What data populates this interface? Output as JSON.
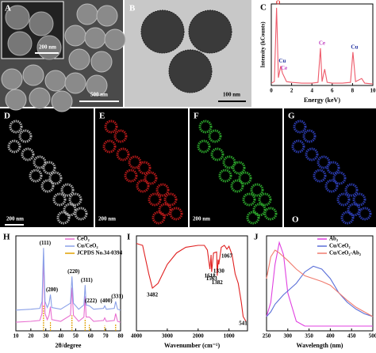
{
  "images": [
    {
      "label": "A",
      "scale_bars": [
        "200 nm",
        "500 nm"
      ]
    },
    {
      "label": "B",
      "scale_bars": [
        "100 nm"
      ]
    },
    {
      "label": "D",
      "scale_bars": [
        "200 nm"
      ]
    },
    {
      "label": "E",
      "scale_bars": [
        "200 nm"
      ]
    },
    {
      "label": "F",
      "scale_bars": [
        "200 nm"
      ]
    },
    {
      "label": "G",
      "scale_bars": [
        "O"
      ]
    }
  ],
  "chart_data": [
    {
      "type": "line",
      "label": "C",
      "x_label": "Energy (keV)",
      "y_label": "Intensity (kCounts)",
      "xlim": [
        0,
        10
      ],
      "ylim": [
        0,
        10.5
      ],
      "xticks": [
        0,
        2,
        4,
        6,
        8,
        10
      ],
      "x": [
        0,
        0.3,
        0.52,
        0.7,
        0.93,
        1.1,
        1.5,
        2,
        3,
        4,
        4.6,
        4.84,
        5,
        5.26,
        5.5,
        6,
        7,
        7.8,
        8.04,
        8.3,
        8.9,
        9.2,
        10
      ],
      "series": [
        {
          "color": "#ee5a6a",
          "values": [
            0.3,
            0.5,
            10,
            1,
            2.5,
            1.6,
            0.5,
            0.4,
            0.3,
            0.3,
            0.4,
            4.8,
            0.5,
            2.1,
            0.4,
            0.3,
            0.3,
            0.4,
            4.3,
            0.5,
            0.9,
            0.3,
            0.2
          ]
        }
      ],
      "annotations": [
        {
          "x": 0.52,
          "label": "O",
          "color": "#e02020"
        },
        {
          "x": 0.93,
          "label": "Cu",
          "color": "#1f2f9f"
        },
        {
          "x": 1.1,
          "label": "Ce",
          "color": "#c040c0"
        },
        {
          "x": 4.84,
          "label": "Ce",
          "color": "#c040c0"
        },
        {
          "x": 8.04,
          "label": "Cu",
          "color": "#1f2f9f"
        }
      ]
    },
    {
      "type": "line",
      "label": "H",
      "x_label": "2θ/degree",
      "xlim": [
        10,
        80
      ],
      "ylim": [
        0,
        11
      ],
      "xticks": [
        10,
        20,
        30,
        40,
        50,
        60,
        70,
        80
      ],
      "x": [
        10,
        20,
        26,
        27.5,
        28.5,
        29.5,
        31,
        32.2,
        33.1,
        34,
        40,
        46.5,
        47.5,
        48.5,
        52,
        55.5,
        56.3,
        57,
        59.1,
        62,
        68.6,
        69.4,
        70.5,
        75.8,
        76.7,
        78,
        80
      ],
      "series": [
        {
          "name": "CeO₂",
          "color": "#e86fd0",
          "values": [
            1,
            1.1,
            1.2,
            2,
            8.5,
            2,
            1.3,
            1.8,
            2.8,
            1.3,
            1.1,
            1.8,
            5,
            1.8,
            1.1,
            1.6,
            4,
            1.6,
            1.6,
            1.1,
            1.2,
            1.5,
            1.1,
            1.2,
            2,
            1.1,
            1
          ]
        },
        {
          "name": "Cu/CeO₂",
          "color": "#8aa0e8",
          "values": [
            2.4,
            2.5,
            2.6,
            3.4,
            9.6,
            3.4,
            2.7,
            3.2,
            4.2,
            2.7,
            2.5,
            3.2,
            6.3,
            3.2,
            2.5,
            3,
            5.3,
            3,
            2.9,
            2.5,
            2.6,
            2.9,
            2.5,
            2.6,
            3.4,
            2.5,
            2.4
          ]
        },
        {
          "name": "JCPDS No.34-0394",
          "color": "#e0a000",
          "style": "sticks",
          "x": [
            28.5,
            33.1,
            47.5,
            56.3,
            59.1,
            69.4,
            76.7
          ],
          "values": [
            3,
            1,
            1.8,
            1.4,
            0.7,
            0.6,
            0.8
          ]
        }
      ],
      "annotations": [
        {
          "x": 28.5,
          "label": "(111)"
        },
        {
          "x": 33.1,
          "label": "(200)"
        },
        {
          "x": 47.5,
          "label": "(220)"
        },
        {
          "x": 56.3,
          "label": "(311)"
        },
        {
          "x": 59.1,
          "label": "(222)"
        },
        {
          "x": 69.4,
          "label": "(400)"
        },
        {
          "x": 76.7,
          "label": "(331)"
        }
      ]
    },
    {
      "type": "line",
      "label": "I",
      "x_label": "Wavenumber (cm⁻¹)",
      "xlim": [
        4000,
        400
      ],
      "ylim": [
        0,
        10
      ],
      "xticks": [
        4000,
        3000,
        2000,
        1000
      ],
      "x": [
        4000,
        3800,
        3600,
        3482,
        3300,
        3000,
        2700,
        2400,
        2000,
        1800,
        1700,
        1618,
        1580,
        1563,
        1500,
        1400,
        1382,
        1350,
        1330,
        1250,
        1150,
        1067,
        1000,
        900,
        800,
        700,
        600,
        541,
        450
      ],
      "series": [
        {
          "color": "#e02020",
          "values": [
            9.2,
            9,
            6,
            4.5,
            5,
            7,
            8.2,
            8.8,
            9,
            9,
            8.5,
            6.5,
            8,
            6.2,
            8.2,
            8.3,
            5.8,
            7.5,
            7,
            8.8,
            9,
            8.6,
            8.9,
            8,
            6,
            5,
            3,
            1.5,
            1
          ]
        }
      ],
      "annotations": [
        3482,
        1618,
        1563,
        1382,
        1330,
        1067,
        541
      ]
    },
    {
      "type": "line",
      "label": "J",
      "x_label": "Wavelength (nm)",
      "xlim": [
        250,
        500
      ],
      "ylim": [
        0,
        10
      ],
      "xticks": [
        250,
        300,
        350,
        400,
        450,
        500
      ],
      "x": [
        250,
        260,
        270,
        280,
        290,
        300,
        320,
        340,
        360,
        380,
        400,
        420,
        440,
        460,
        480,
        500
      ],
      "series": [
        {
          "name": "Ab₂",
          "color": "#e040e0",
          "values": [
            1.5,
            3,
            7,
            9.3,
            8,
            4,
            1,
            0.5,
            0.5,
            0.5,
            0.5,
            0.5,
            0.5,
            0.5,
            0.5,
            0.5
          ]
        },
        {
          "name": "Cu/CeO₂",
          "color": "#5a6fd8",
          "values": [
            1.5,
            2,
            2.8,
            3.3,
            3.8,
            4.2,
            5,
            6.2,
            6.8,
            6.5,
            5.5,
            4,
            3,
            2.3,
            1.8,
            1.5
          ]
        },
        {
          "name": "Cu/CeO₂-Ab₂",
          "color": "#f07b6e",
          "values": [
            5.5,
            7.8,
            8.5,
            8.2,
            7.8,
            7.4,
            6.5,
            5.8,
            5.5,
            5.2,
            4.8,
            4,
            3.2,
            2.5,
            2,
            1.5
          ]
        }
      ]
    }
  ]
}
